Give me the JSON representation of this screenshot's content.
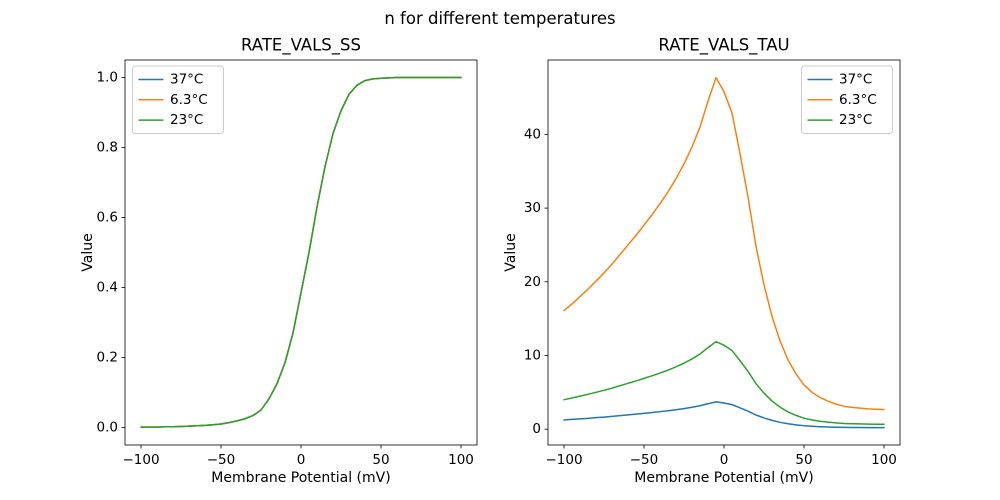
{
  "figure": {
    "suptitle": "n for different temperatures",
    "background_color": "#ffffff",
    "text_color": "#000000",
    "spine_color": "#000000",
    "legend_border_color": "#cccccc",
    "legend_background": "#ffffff"
  },
  "chart_data": [
    {
      "type": "line",
      "title": "RATE_VALS_SS",
      "xlabel": "Membrane Potential (mV)",
      "ylabel": "Value",
      "xlim": [
        -110,
        110
      ],
      "ylim": [
        -0.05,
        1.05
      ],
      "grid": false,
      "legend_position": "upper-left",
      "xticks": [
        {
          "v": -100,
          "label": "−100"
        },
        {
          "v": -50,
          "label": "−50"
        },
        {
          "v": 0,
          "label": "0"
        },
        {
          "v": 50,
          "label": "50"
        },
        {
          "v": 100,
          "label": "100"
        }
      ],
      "yticks": [
        {
          "v": 0.0,
          "label": "0.0"
        },
        {
          "v": 0.2,
          "label": "0.2"
        },
        {
          "v": 0.4,
          "label": "0.4"
        },
        {
          "v": 0.6,
          "label": "0.6"
        },
        {
          "v": 0.8,
          "label": "0.8"
        },
        {
          "v": 1.0,
          "label": "1.0"
        }
      ],
      "x": [
        -100,
        -95,
        -90,
        -85,
        -80,
        -75,
        -70,
        -65,
        -60,
        -55,
        -50,
        -45,
        -40,
        -35,
        -30,
        -25,
        -20,
        -15,
        -10,
        -5,
        0,
        5,
        10,
        15,
        20,
        25,
        30,
        35,
        40,
        45,
        50,
        55,
        60,
        65,
        70,
        75,
        80,
        85,
        90,
        95,
        100
      ],
      "series": [
        {
          "name": "37°C",
          "color": "#1f77b4",
          "values": [
            0.001,
            0.001,
            0.001,
            0.002,
            0.002,
            0.003,
            0.004,
            0.005,
            0.006,
            0.008,
            0.01,
            0.014,
            0.019,
            0.025,
            0.034,
            0.05,
            0.082,
            0.125,
            0.185,
            0.27,
            0.385,
            0.5,
            0.63,
            0.745,
            0.84,
            0.905,
            0.952,
            0.978,
            0.991,
            0.996,
            0.998,
            0.999,
            1.0,
            1.0,
            1.0,
            1.0,
            1.0,
            1.0,
            1.0,
            1.0,
            1.0
          ]
        },
        {
          "name": "6.3°C",
          "color": "#ff7f0e",
          "values": [
            0.001,
            0.001,
            0.001,
            0.002,
            0.002,
            0.003,
            0.004,
            0.005,
            0.006,
            0.008,
            0.01,
            0.014,
            0.019,
            0.025,
            0.034,
            0.05,
            0.082,
            0.125,
            0.185,
            0.27,
            0.385,
            0.5,
            0.63,
            0.745,
            0.84,
            0.905,
            0.952,
            0.978,
            0.991,
            0.996,
            0.998,
            0.999,
            1.0,
            1.0,
            1.0,
            1.0,
            1.0,
            1.0,
            1.0,
            1.0,
            1.0
          ]
        },
        {
          "name": "23°C",
          "color": "#2ca02c",
          "values": [
            0.001,
            0.001,
            0.001,
            0.002,
            0.002,
            0.003,
            0.004,
            0.005,
            0.006,
            0.008,
            0.01,
            0.014,
            0.019,
            0.025,
            0.034,
            0.05,
            0.082,
            0.125,
            0.185,
            0.27,
            0.385,
            0.5,
            0.63,
            0.745,
            0.84,
            0.905,
            0.952,
            0.978,
            0.991,
            0.996,
            0.998,
            0.999,
            1.0,
            1.0,
            1.0,
            1.0,
            1.0,
            1.0,
            1.0,
            1.0,
            1.0
          ]
        }
      ]
    },
    {
      "type": "line",
      "title": "RATE_VALS_TAU",
      "xlabel": "Membrane Potential (mV)",
      "ylabel": "Value",
      "xlim": [
        -110,
        110
      ],
      "ylim": [
        -2.15,
        50.1
      ],
      "grid": false,
      "legend_position": "upper-right",
      "xticks": [
        {
          "v": -100,
          "label": "−100"
        },
        {
          "v": -50,
          "label": "−50"
        },
        {
          "v": 0,
          "label": "0"
        },
        {
          "v": 50,
          "label": "50"
        },
        {
          "v": 100,
          "label": "100"
        }
      ],
      "yticks": [
        {
          "v": 0,
          "label": "0"
        },
        {
          "v": 10,
          "label": "10"
        },
        {
          "v": 20,
          "label": "20"
        },
        {
          "v": 30,
          "label": "30"
        },
        {
          "v": 40,
          "label": "40"
        }
      ],
      "x": [
        -100,
        -95,
        -90,
        -85,
        -80,
        -75,
        -70,
        -65,
        -60,
        -55,
        -50,
        -45,
        -40,
        -35,
        -30,
        -25,
        -20,
        -15,
        -10,
        -5,
        0,
        5,
        10,
        15,
        20,
        25,
        30,
        35,
        40,
        45,
        50,
        55,
        60,
        65,
        70,
        75,
        80,
        85,
        90,
        95,
        100
      ],
      "series": [
        {
          "name": "37°C",
          "color": "#1f77b4",
          "values": [
            1.25,
            1.32,
            1.4,
            1.47,
            1.56,
            1.64,
            1.74,
            1.84,
            1.94,
            2.04,
            2.15,
            2.26,
            2.37,
            2.5,
            2.64,
            2.79,
            2.97,
            3.18,
            3.45,
            3.7,
            3.55,
            3.33,
            2.9,
            2.44,
            1.92,
            1.52,
            1.19,
            0.93,
            0.73,
            0.58,
            0.47,
            0.39,
            0.33,
            0.29,
            0.26,
            0.24,
            0.23,
            0.22,
            0.21,
            0.21,
            0.21
          ]
        },
        {
          "name": "6.3°C",
          "color": "#ff7f0e",
          "values": [
            16.1,
            17.0,
            18.0,
            19.0,
            20.1,
            21.2,
            22.4,
            23.7,
            25.0,
            26.3,
            27.7,
            29.1,
            30.6,
            32.2,
            34.0,
            36.0,
            38.3,
            41.0,
            44.5,
            47.7,
            45.8,
            42.9,
            37.4,
            31.5,
            24.8,
            19.6,
            15.3,
            12.0,
            9.4,
            7.5,
            6.0,
            5.0,
            4.3,
            3.8,
            3.4,
            3.1,
            2.95,
            2.85,
            2.75,
            2.7,
            2.65
          ]
        },
        {
          "name": "23°C",
          "color": "#2ca02c",
          "values": [
            4.0,
            4.23,
            4.48,
            4.73,
            5.0,
            5.27,
            5.57,
            5.9,
            6.22,
            6.54,
            6.89,
            7.24,
            7.61,
            8.01,
            8.46,
            8.96,
            9.53,
            10.2,
            11.07,
            11.87,
            11.39,
            10.67,
            9.3,
            7.84,
            6.17,
            4.88,
            3.81,
            2.99,
            2.34,
            1.87,
            1.49,
            1.24,
            1.07,
            0.95,
            0.85,
            0.77,
            0.73,
            0.71,
            0.68,
            0.67,
            0.66
          ]
        }
      ]
    }
  ]
}
